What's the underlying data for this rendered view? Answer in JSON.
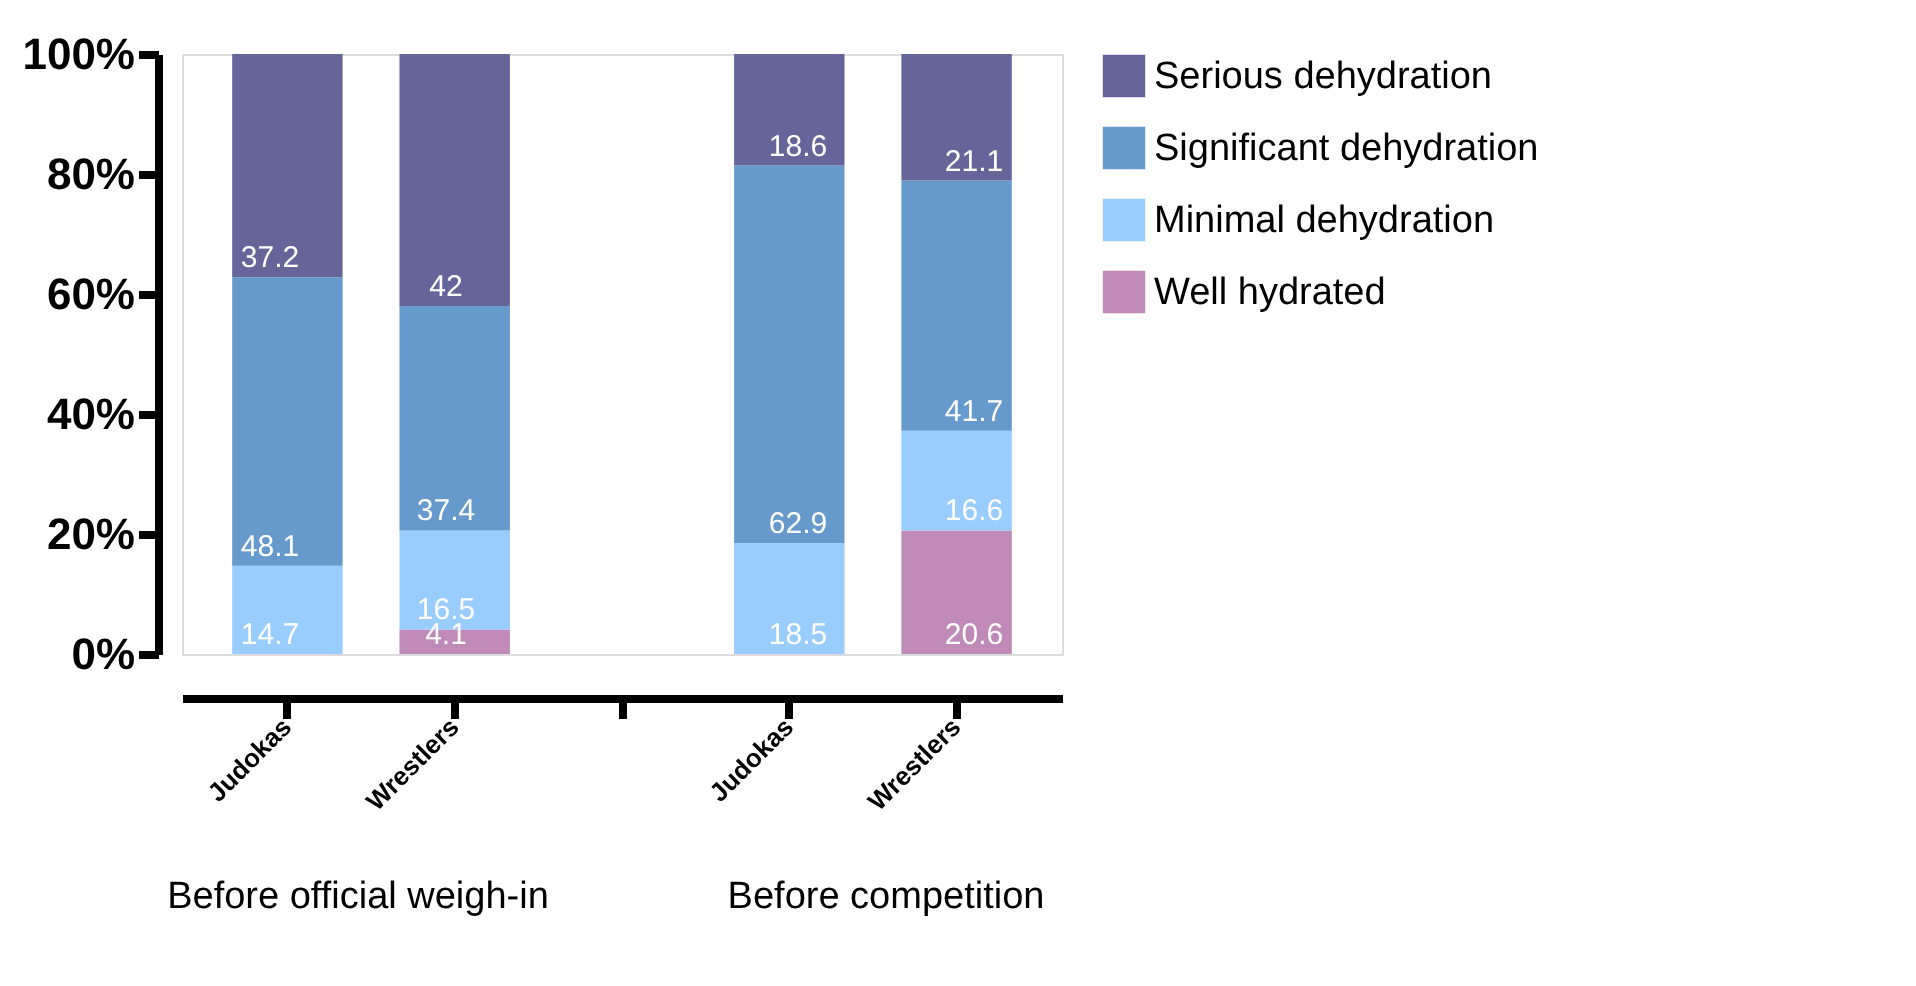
{
  "chart_data": {
    "type": "bar",
    "stacked": true,
    "categories": [
      "Judokas",
      "Wrestlers",
      null,
      "Judokas",
      "Wrestlers"
    ],
    "series": [
      {
        "name": "Well hydrated",
        "color": "#c08ab8",
        "values": [
          null,
          4.1,
          null,
          null,
          20.6
        ]
      },
      {
        "name": "Minimal dehydration",
        "color": "#99ccff",
        "values": [
          14.7,
          16.5,
          null,
          18.5,
          16.6
        ]
      },
      {
        "name": "Significant dehydration",
        "color": "#6699cc",
        "values": [
          48.1,
          37.4,
          null,
          62.9,
          41.7
        ]
      },
      {
        "name": "Serious dehydration",
        "color": "#65659a",
        "values": [
          37.2,
          42,
          null,
          18.6,
          21.1
        ]
      }
    ],
    "ylim": [
      0,
      100
    ],
    "yticks": [
      {
        "value": 0,
        "label": "0%"
      },
      {
        "value": 20,
        "label": "20%"
      },
      {
        "value": 40,
        "label": "40%"
      },
      {
        "value": 60,
        "label": "60%"
      },
      {
        "value": 80,
        "label": "80%"
      },
      {
        "value": 100,
        "label": "100%"
      }
    ],
    "data_labels": true,
    "grid": false,
    "legend": "right",
    "annotations": [
      "Before official weigh-in",
      "Before competition"
    ]
  }
}
